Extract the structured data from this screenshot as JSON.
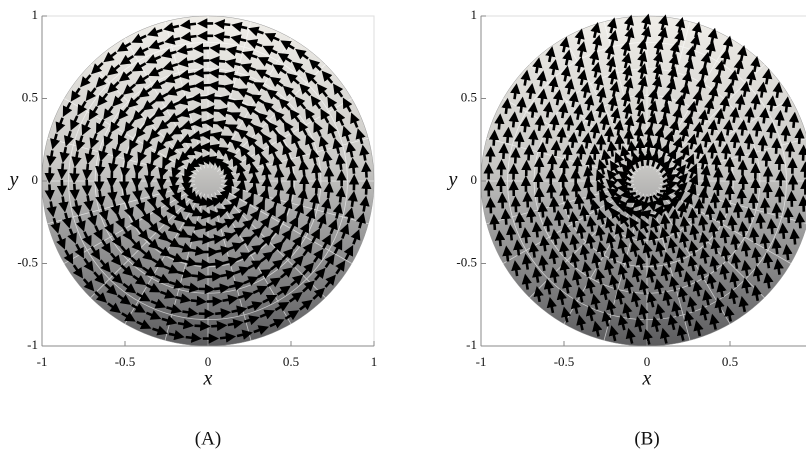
{
  "chart_data": [
    {
      "type": "quiver",
      "field": "rotational",
      "xlabel": "x",
      "ylabel": "y",
      "caption": "(A)",
      "xlim": [
        -1,
        1
      ],
      "ylim": [
        -1,
        1
      ],
      "xticks": [
        -1,
        -0.5,
        0,
        0.5,
        1
      ],
      "yticks": [
        -1,
        -0.5,
        0,
        0.5,
        1
      ]
    },
    {
      "type": "quiver",
      "field": "downward",
      "xlabel": "x",
      "ylabel": "y",
      "caption": "(B)",
      "xlim": [
        -1,
        1
      ],
      "ylim": [
        -1,
        1
      ],
      "xticks": [
        -1,
        -0.5,
        0,
        0.5
      ],
      "yticks": [
        -1,
        -0.5,
        0,
        0.5,
        1
      ]
    }
  ]
}
